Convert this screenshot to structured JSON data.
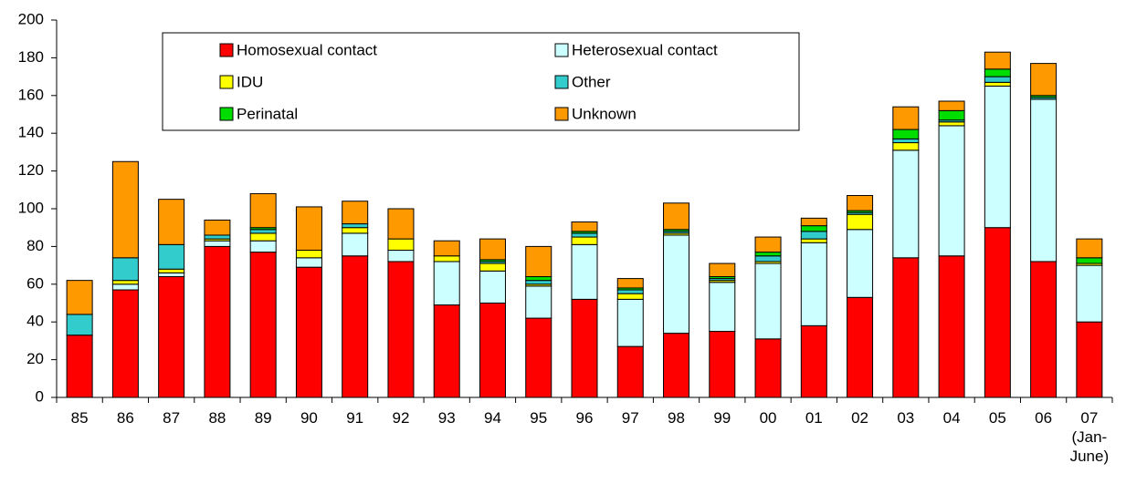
{
  "chart_data": {
    "type": "stacked_bar",
    "categories": [
      "85",
      "86",
      "87",
      "88",
      "89",
      "90",
      "91",
      "92",
      "93",
      "94",
      "95",
      "96",
      "97",
      "98",
      "99",
      "00",
      "01",
      "02",
      "03",
      "04",
      "05",
      "06",
      "07\n(Jan-\nJune)"
    ],
    "series": [
      {
        "name": "Homosexual contact",
        "color": "#ff0000",
        "values": [
          33,
          57,
          64,
          80,
          77,
          69,
          75,
          72,
          49,
          50,
          42,
          52,
          27,
          34,
          35,
          31,
          38,
          53,
          74,
          75,
          90,
          72,
          40
        ]
      },
      {
        "name": "Heterosexual contact",
        "color": "#ccffff",
        "values": [
          0,
          3,
          2,
          3,
          6,
          5,
          12,
          6,
          23,
          17,
          17,
          29,
          25,
          52,
          26,
          40,
          44,
          36,
          57,
          69,
          75,
          86,
          30
        ]
      },
      {
        "name": "IDU",
        "color": "#ffff00",
        "values": [
          0,
          2,
          2,
          1,
          4,
          4,
          3,
          6,
          3,
          4,
          1,
          4,
          3,
          1,
          1,
          1,
          2,
          8,
          4,
          2,
          2,
          0,
          1
        ]
      },
      {
        "name": "Other",
        "color": "#33cccc",
        "values": [
          11,
          12,
          13,
          2,
          2,
          0,
          2,
          0,
          0,
          1,
          2,
          2,
          2,
          1,
          1,
          3,
          4,
          1,
          2,
          1,
          3,
          1,
          0
        ]
      },
      {
        "name": "Perinatal",
        "color": "#00dd00",
        "values": [
          0,
          0,
          0,
          0,
          1,
          0,
          0,
          0,
          0,
          1,
          2,
          1,
          1,
          1,
          1,
          2,
          3,
          1,
          5,
          5,
          4,
          1,
          3
        ]
      },
      {
        "name": "Unknown",
        "color": "#ff9900",
        "values": [
          18,
          51,
          24,
          8,
          18,
          23,
          12,
          16,
          8,
          11,
          16,
          5,
          5,
          14,
          7,
          8,
          4,
          8,
          12,
          5,
          9,
          17,
          10
        ]
      }
    ],
    "ylim": [
      0,
      200
    ],
    "yticks": [
      0,
      20,
      40,
      60,
      80,
      100,
      120,
      140,
      160,
      180,
      200
    ]
  }
}
